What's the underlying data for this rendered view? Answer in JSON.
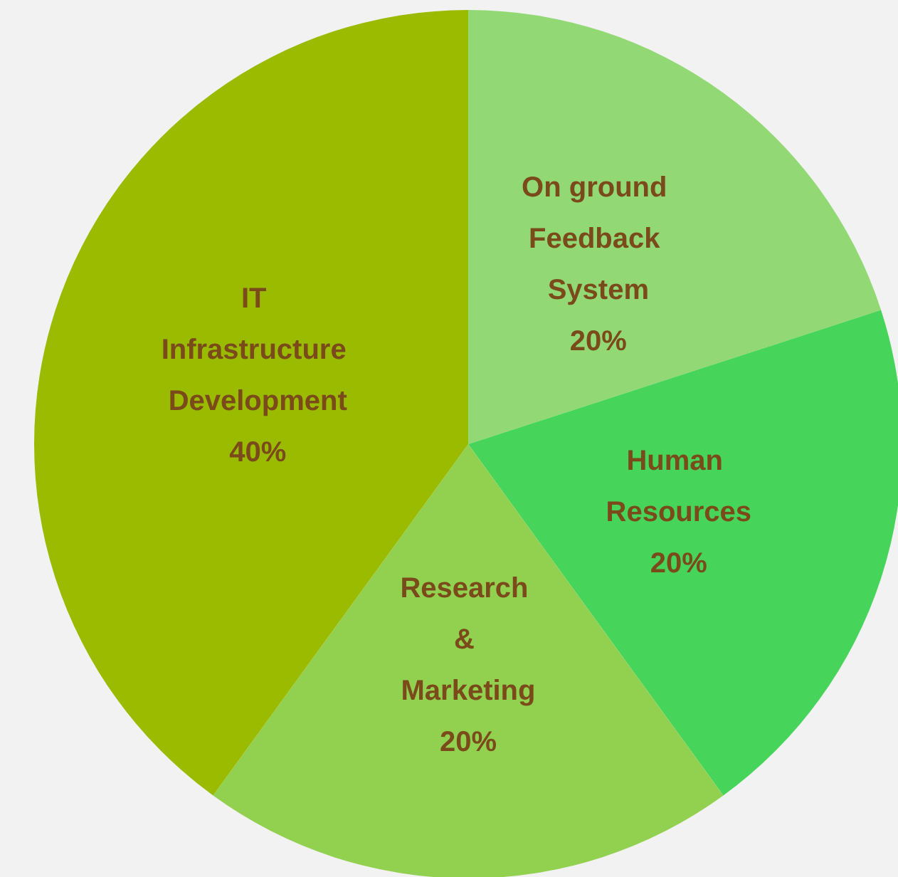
{
  "chart_data": {
    "type": "pie",
    "categories": [
      "On ground Feedback System",
      "Human Resources",
      "Research & Marketing",
      "IT Infrastructure Development"
    ],
    "values": [
      20,
      20,
      20,
      40
    ],
    "value_labels": [
      "20%",
      "20%",
      "20%",
      "40%"
    ],
    "colors": [
      "#92d975",
      "#47d45a",
      "#92d050",
      "#9bbb00"
    ],
    "legend": false
  }
}
